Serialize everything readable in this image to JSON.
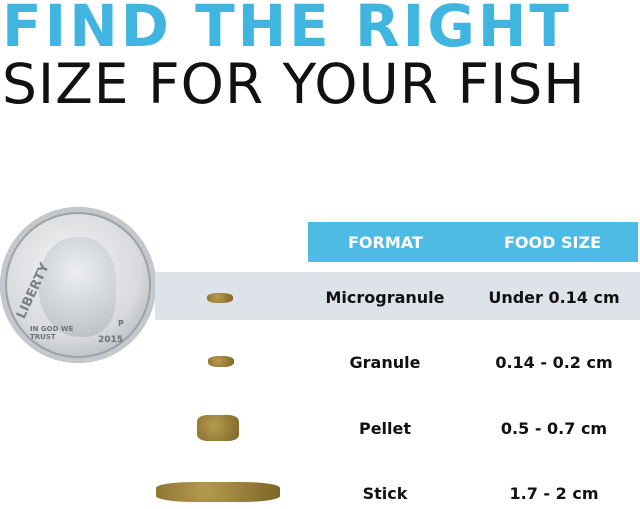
{
  "title": {
    "line1": "FIND THE RIGHT",
    "line2": "SIZE FOR YOUR FISH"
  },
  "colors": {
    "accent": "#3fb5df",
    "header_bg": "#4dbbe3",
    "row_shade": "#dde3e9"
  },
  "coin": {
    "liberty": "LIBERTY",
    "motto": "IN GOD WE TRUST",
    "year": "2015",
    "mint": "P"
  },
  "table": {
    "headers": [
      "FORMAT",
      "FOOD SIZE"
    ],
    "rows": [
      {
        "format": "Microgranule",
        "size": "Under 0.14 cm"
      },
      {
        "format": "Granule",
        "size": "0.14 - 0.2 cm"
      },
      {
        "format": "Pellet",
        "size": "0.5 - 0.7 cm"
      },
      {
        "format": "Stick",
        "size": "1.7 - 2 cm"
      }
    ]
  }
}
